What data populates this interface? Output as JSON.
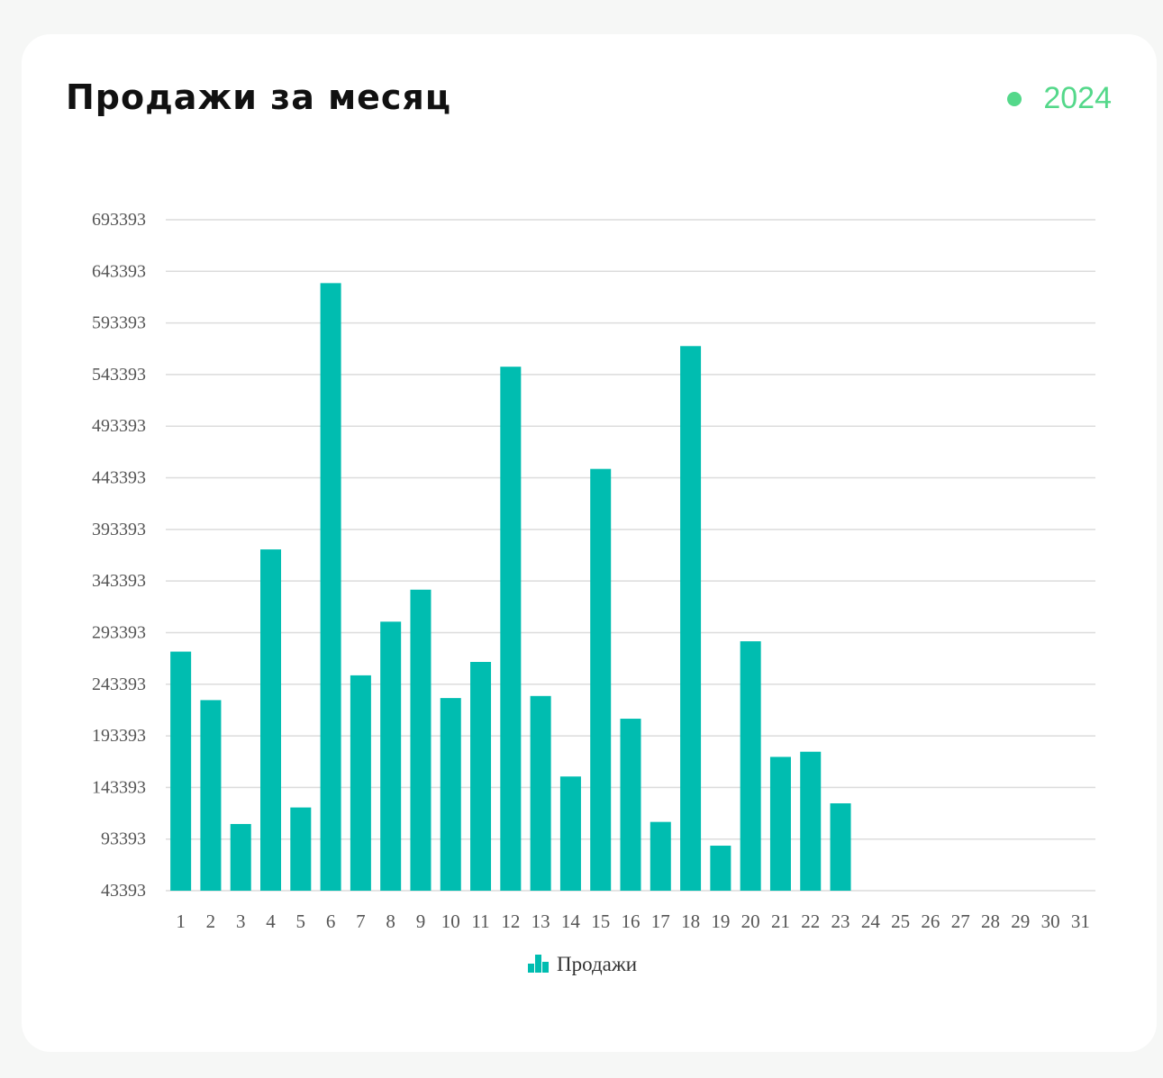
{
  "header": {
    "title": "Продажи за месяц",
    "year": "2024",
    "year_dot_color": "#54d88a"
  },
  "chart_data": {
    "type": "bar",
    "bar_color": "#00bdb0",
    "grid": true,
    "legend": {
      "position": "bottom-center",
      "label": "Продажи",
      "icon": "bar-chart-icon"
    },
    "xlabel": "",
    "ylabel": "",
    "ylim": [
      43393,
      693393
    ],
    "y_ticks": [
      43393,
      93393,
      143393,
      193393,
      243393,
      293393,
      343393,
      393393,
      443393,
      493393,
      543393,
      593393,
      643393,
      693393
    ],
    "categories": [
      "1",
      "2",
      "3",
      "4",
      "5",
      "6",
      "7",
      "8",
      "9",
      "10",
      "11",
      "12",
      "13",
      "14",
      "15",
      "16",
      "17",
      "18",
      "19",
      "20",
      "21",
      "22",
      "23",
      "24",
      "25",
      "26",
      "27",
      "28",
      "29",
      "30",
      "31"
    ],
    "series": [
      {
        "name": "Продажи",
        "values": [
          275000,
          228000,
          108000,
          374000,
          124000,
          632000,
          252000,
          304000,
          335000,
          230000,
          265000,
          551000,
          232000,
          154000,
          452000,
          210000,
          110000,
          571000,
          87000,
          285000,
          173000,
          178000,
          128000,
          null,
          null,
          null,
          null,
          null,
          null,
          null,
          null
        ]
      }
    ]
  }
}
